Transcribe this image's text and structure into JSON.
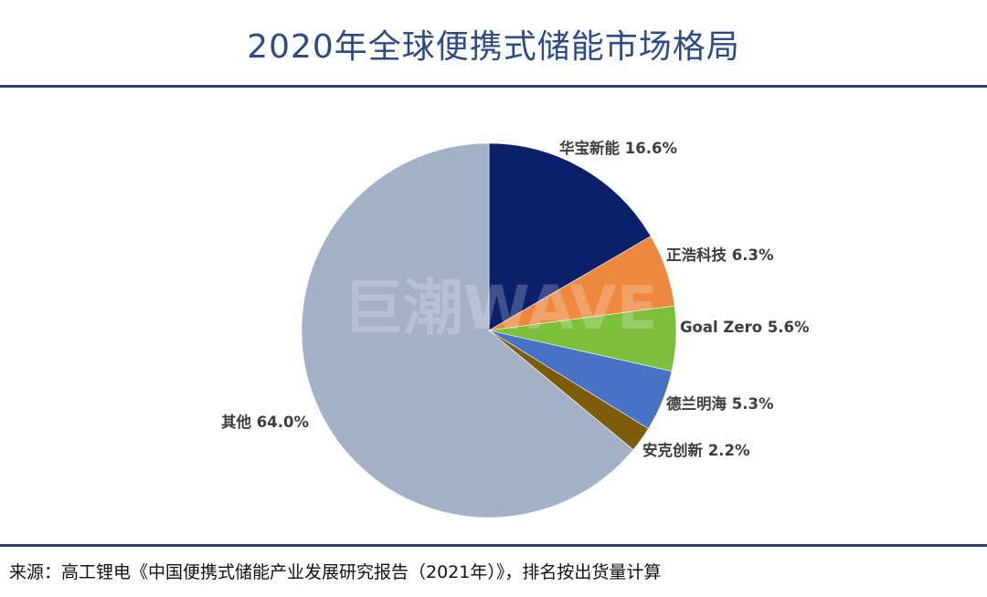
{
  "title": "2020年全球便携式储能市场格局",
  "watermark": "巨潮WAVE",
  "source": "来源：高工锂电《中国便携式储能产业发展研究报告（2021年）》，排名按出货量计算",
  "chart_data": {
    "type": "pie",
    "start": "top, clockwise",
    "slices": [
      {
        "label": "华宝新能 16.6%",
        "name": "华宝新能",
        "value": 16.6,
        "color": "#0b1f6b"
      },
      {
        "label": "正浩科技 6.3%",
        "name": "正浩科技",
        "value": 6.3,
        "color": "#ee883e"
      },
      {
        "label": "Goal Zero 5.6%",
        "name": "Goal Zero",
        "value": 5.6,
        "color": "#7cbf3a"
      },
      {
        "label": "德兰明海 5.3%",
        "name": "德兰明海",
        "value": 5.3,
        "color": "#4673c6"
      },
      {
        "label": "安克创新 2.2%",
        "name": "安克创新",
        "value": 2.2,
        "color": "#7d5c0c"
      },
      {
        "label": "其他 64.0%",
        "name": "其他",
        "value": 64.0,
        "color": "#a2b1c6"
      }
    ]
  }
}
